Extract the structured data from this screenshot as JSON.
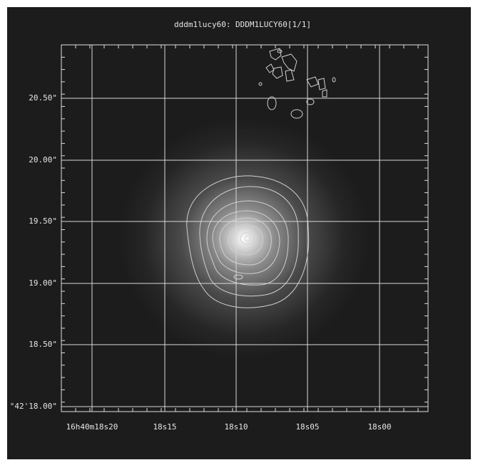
{
  "title": "dddm1lucy60: DDDM1LUCY60[1/1]",
  "y_axis": {
    "labels": [
      "20.50\"",
      "20.00\"",
      "19.50\"",
      "19.00\"",
      "18.50\"",
      "°42'18.00\""
    ]
  },
  "x_axis": {
    "labels": [
      "16h40m18s20",
      "18s15",
      "18s10",
      "18s05",
      "18s00"
    ]
  }
}
